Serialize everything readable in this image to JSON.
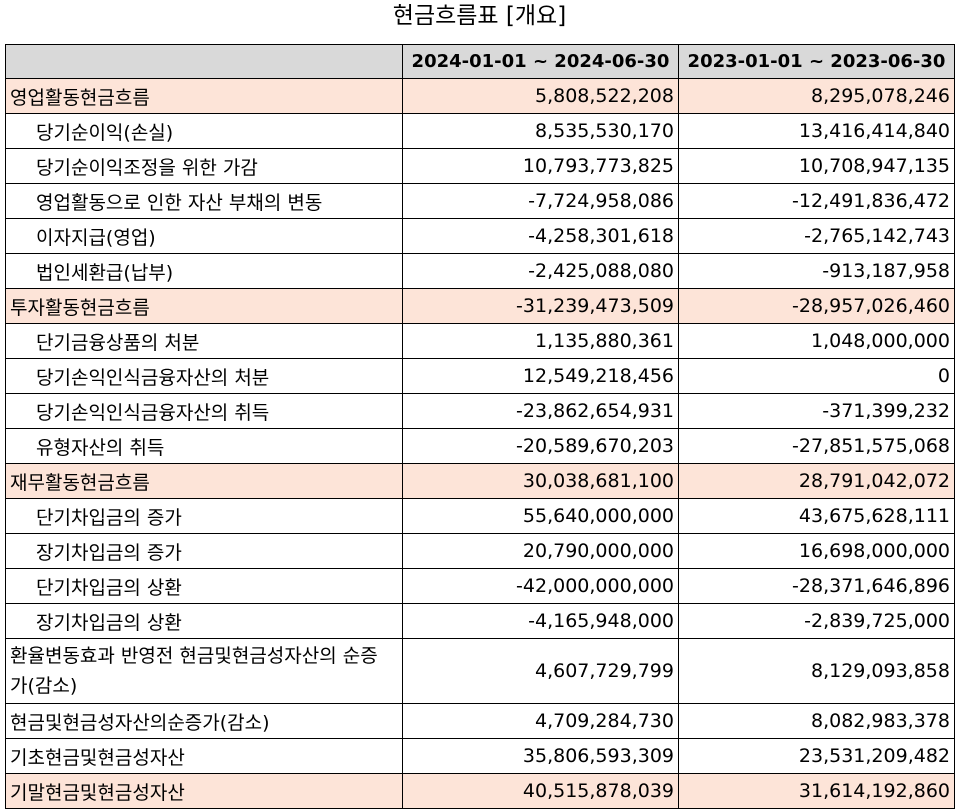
{
  "title": "현금흐름표 [개요]",
  "header": {
    "period_current": "2024-01-01 ~ 2024-06-30",
    "period_prior": "2023-01-01 ~ 2023-06-30"
  },
  "rows": [
    {
      "label": "영업활동현금흐름",
      "current": "5,808,522,208",
      "prior": "8,295,078,246"
    },
    {
      "label": "당기순이익(손실)",
      "current": "8,535,530,170",
      "prior": "13,416,414,840"
    },
    {
      "label": "당기순이익조정을 위한 가감",
      "current": "10,793,773,825",
      "prior": "10,708,947,135"
    },
    {
      "label": "영업활동으로 인한 자산 부채의 변동",
      "current": "-7,724,958,086",
      "prior": "-12,491,836,472"
    },
    {
      "label": "이자지급(영업)",
      "current": "-4,258,301,618",
      "prior": "-2,765,142,743"
    },
    {
      "label": "법인세환급(납부)",
      "current": "-2,425,088,080",
      "prior": "-913,187,958"
    },
    {
      "label": "투자활동현금흐름",
      "current": "-31,239,473,509",
      "prior": "-28,957,026,460"
    },
    {
      "label": "단기금융상품의 처분",
      "current": "1,135,880,361",
      "prior": "1,048,000,000"
    },
    {
      "label": "당기손익인식금융자산의 처분",
      "current": "12,549,218,456",
      "prior": "0"
    },
    {
      "label": "당기손익인식금융자산의 취득",
      "current": "-23,862,654,931",
      "prior": "-371,399,232"
    },
    {
      "label": "유형자산의 취득",
      "current": "-20,589,670,203",
      "prior": "-27,851,575,068"
    },
    {
      "label": "재무활동현금흐름",
      "current": "30,038,681,100",
      "prior": "28,791,042,072"
    },
    {
      "label": "단기차입금의 증가",
      "current": "55,640,000,000",
      "prior": "43,675,628,111"
    },
    {
      "label": "장기차입금의 증가",
      "current": "20,790,000,000",
      "prior": "16,698,000,000"
    },
    {
      "label": "단기차입금의 상환",
      "current": "-42,000,000,000",
      "prior": "-28,371,646,896"
    },
    {
      "label": "장기차입금의 상환",
      "current": "-4,165,948,000",
      "prior": "-2,839,725,000"
    },
    {
      "label": "환율변동효과 반영전 현금및현금성자산의 순증가(감소)",
      "current": "4,607,729,799",
      "prior": "8,129,093,858"
    },
    {
      "label": "현금및현금성자산의순증가(감소)",
      "current": "4,709,284,730",
      "prior": "8,082,983,378"
    },
    {
      "label": "기초현금및현금성자산",
      "current": "35,806,593,309",
      "prior": "23,531,209,482"
    },
    {
      "label": "기말현금및현금성자산",
      "current": "40,515,878,039",
      "prior": "31,614,192,860"
    }
  ]
}
